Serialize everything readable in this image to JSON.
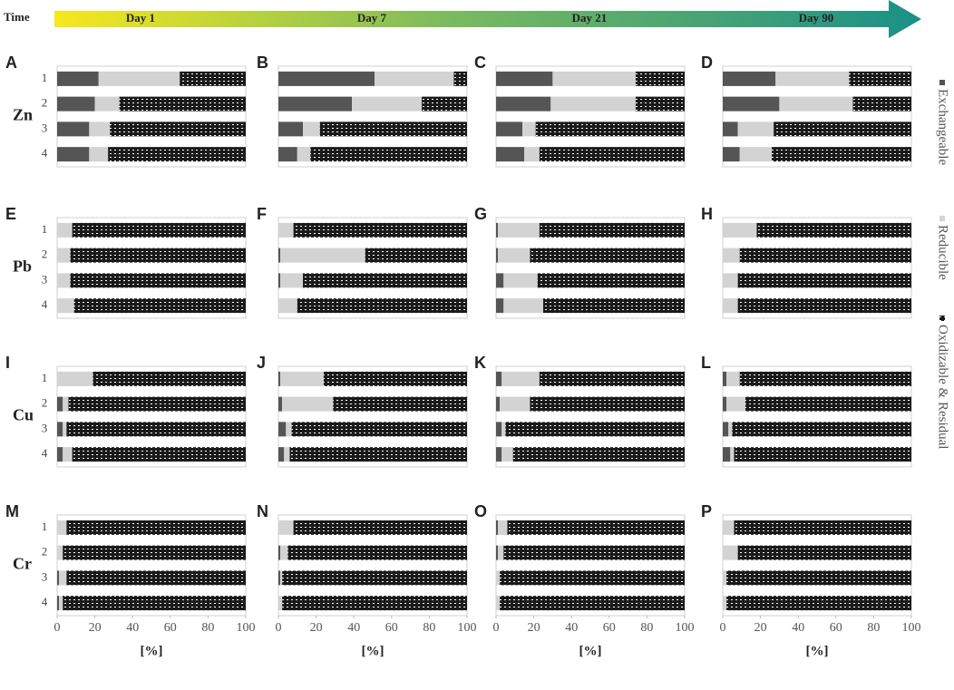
{
  "time_label": "Time",
  "time_points": [
    "Day 1",
    "Day 7",
    "Day 21",
    "Day 90"
  ],
  "metals": [
    "Zn",
    "Pb",
    "Cu",
    "Cr"
  ],
  "chart_data": [
    {
      "type": "bar",
      "orientation": "horizontal",
      "stacked": true,
      "title": "A",
      "categories": [
        "1",
        "2",
        "3",
        "4"
      ],
      "xlim": [
        0,
        100
      ],
      "series": [
        {
          "name": "Exchangeable",
          "color": "#555555",
          "values": [
            22,
            20,
            17,
            17
          ]
        },
        {
          "name": "Reducible",
          "color": "#d3d3d3",
          "values": [
            43,
            13,
            11,
            10
          ]
        },
        {
          "name": "Oxidizable & Residual",
          "color": "#1a1a1a",
          "pattern": true,
          "values": [
            35,
            67,
            72,
            73
          ]
        }
      ]
    },
    {
      "type": "bar",
      "orientation": "horizontal",
      "stacked": true,
      "title": "B",
      "categories": [
        null,
        null,
        null,
        null
      ],
      "xlim": [
        0,
        100
      ],
      "series": [
        {
          "color": "#555555",
          "values": [
            51,
            39,
            13,
            10
          ]
        },
        {
          "color": "#d3d3d3",
          "values": [
            42,
            37,
            9,
            7
          ]
        },
        {
          "color": "#1a1a1a",
          "pattern": true,
          "values": [
            7,
            24,
            78,
            83
          ]
        }
      ]
    },
    {
      "type": "bar",
      "orientation": "horizontal",
      "stacked": true,
      "title": "C",
      "categories": [
        null,
        null,
        null,
        null
      ],
      "xlim": [
        0,
        100
      ],
      "series": [
        {
          "color": "#555555",
          "values": [
            30,
            29,
            14,
            15
          ]
        },
        {
          "color": "#d3d3d3",
          "values": [
            44,
            45,
            7,
            8
          ]
        },
        {
          "color": "#1a1a1a",
          "pattern": true,
          "values": [
            26,
            26,
            79,
            77
          ]
        }
      ]
    },
    {
      "type": "bar",
      "orientation": "horizontal",
      "stacked": true,
      "title": "D",
      "categories": [
        null,
        null,
        null,
        null
      ],
      "xlim": [
        0,
        100
      ],
      "series": [
        {
          "color": "#555555",
          "values": [
            28,
            30,
            8,
            9
          ]
        },
        {
          "color": "#d3d3d3",
          "values": [
            39,
            39,
            19,
            17
          ]
        },
        {
          "color": "#1a1a1a",
          "pattern": true,
          "values": [
            33,
            31,
            73,
            74
          ]
        }
      ]
    },
    {
      "type": "bar",
      "orientation": "horizontal",
      "stacked": true,
      "title": "E",
      "categories": [
        "1",
        "2",
        "3",
        "4"
      ],
      "xlim": [
        0,
        100
      ],
      "series": [
        {
          "color": "#555555",
          "values": [
            0,
            0,
            0,
            0
          ]
        },
        {
          "color": "#d3d3d3",
          "values": [
            8,
            7,
            7,
            9
          ]
        },
        {
          "color": "#1a1a1a",
          "pattern": true,
          "values": [
            92,
            93,
            93,
            91
          ]
        }
      ]
    },
    {
      "type": "bar",
      "orientation": "horizontal",
      "stacked": true,
      "title": "F",
      "categories": [
        null,
        null,
        null,
        null
      ],
      "xlim": [
        0,
        100
      ],
      "series": [
        {
          "color": "#555555",
          "values": [
            0,
            1,
            1,
            0
          ]
        },
        {
          "color": "#d3d3d3",
          "values": [
            8,
            45,
            12,
            10
          ]
        },
        {
          "color": "#1a1a1a",
          "pattern": true,
          "values": [
            92,
            54,
            87,
            90
          ]
        }
      ]
    },
    {
      "type": "bar",
      "orientation": "horizontal",
      "stacked": true,
      "title": "G",
      "categories": [
        null,
        null,
        null,
        null
      ],
      "xlim": [
        0,
        100
      ],
      "series": [
        {
          "color": "#555555",
          "values": [
            1,
            1,
            4,
            4
          ]
        },
        {
          "color": "#d3d3d3",
          "values": [
            22,
            17,
            18,
            21
          ]
        },
        {
          "color": "#1a1a1a",
          "pattern": true,
          "values": [
            77,
            82,
            78,
            75
          ]
        }
      ]
    },
    {
      "type": "bar",
      "orientation": "horizontal",
      "stacked": true,
      "title": "H",
      "categories": [
        null,
        null,
        null,
        null
      ],
      "xlim": [
        0,
        100
      ],
      "series": [
        {
          "color": "#555555",
          "values": [
            0,
            0,
            0,
            0
          ]
        },
        {
          "color": "#d3d3d3",
          "values": [
            18,
            9,
            8,
            8
          ]
        },
        {
          "color": "#1a1a1a",
          "pattern": true,
          "values": [
            82,
            91,
            92,
            92
          ]
        }
      ]
    },
    {
      "type": "bar",
      "orientation": "horizontal",
      "stacked": true,
      "title": "I",
      "categories": [
        "1",
        "2",
        "3",
        "4"
      ],
      "xlim": [
        0,
        100
      ],
      "series": [
        {
          "color": "#555555",
          "values": [
            0,
            3,
            3,
            3
          ]
        },
        {
          "color": "#d3d3d3",
          "values": [
            19,
            3,
            2,
            5
          ]
        },
        {
          "color": "#1a1a1a",
          "pattern": true,
          "values": [
            81,
            94,
            95,
            92
          ]
        }
      ]
    },
    {
      "type": "bar",
      "orientation": "horizontal",
      "stacked": true,
      "title": "J",
      "categories": [
        null,
        null,
        null,
        null
      ],
      "xlim": [
        0,
        100
      ],
      "series": [
        {
          "color": "#555555",
          "values": [
            1,
            2,
            4,
            3
          ]
        },
        {
          "color": "#d3d3d3",
          "values": [
            23,
            27,
            3,
            3
          ]
        },
        {
          "color": "#1a1a1a",
          "pattern": true,
          "values": [
            76,
            71,
            93,
            94
          ]
        }
      ]
    },
    {
      "type": "bar",
      "orientation": "horizontal",
      "stacked": true,
      "title": "K",
      "categories": [
        null,
        null,
        null,
        null
      ],
      "xlim": [
        0,
        100
      ],
      "series": [
        {
          "color": "#555555",
          "values": [
            3,
            2,
            3,
            3
          ]
        },
        {
          "color": "#d3d3d3",
          "values": [
            20,
            16,
            2,
            6
          ]
        },
        {
          "color": "#1a1a1a",
          "pattern": true,
          "values": [
            77,
            82,
            95,
            91
          ]
        }
      ]
    },
    {
      "type": "bar",
      "orientation": "horizontal",
      "stacked": true,
      "title": "L",
      "categories": [
        null,
        null,
        null,
        null
      ],
      "xlim": [
        0,
        100
      ],
      "series": [
        {
          "color": "#555555",
          "values": [
            2,
            2,
            3,
            4
          ]
        },
        {
          "color": "#d3d3d3",
          "values": [
            7,
            10,
            2,
            2
          ]
        },
        {
          "color": "#1a1a1a",
          "pattern": true,
          "values": [
            91,
            88,
            95,
            94
          ]
        }
      ]
    },
    {
      "type": "bar",
      "orientation": "horizontal",
      "stacked": true,
      "title": "M",
      "categories": [
        "1",
        "2",
        "3",
        "4"
      ],
      "xlim": [
        0,
        100
      ],
      "xticks": [
        0,
        20,
        40,
        60,
        80,
        100
      ],
      "xlabel": "[%]",
      "series": [
        {
          "color": "#555555",
          "values": [
            0,
            0,
            1,
            1
          ]
        },
        {
          "color": "#d3d3d3",
          "values": [
            5,
            3,
            4,
            2
          ]
        },
        {
          "color": "#1a1a1a",
          "pattern": true,
          "values": [
            95,
            97,
            95,
            97
          ]
        }
      ]
    },
    {
      "type": "bar",
      "orientation": "horizontal",
      "stacked": true,
      "title": "N",
      "categories": [
        null,
        null,
        null,
        null
      ],
      "xlim": [
        0,
        100
      ],
      "xticks": [
        0,
        20,
        40,
        60,
        80,
        100
      ],
      "xlabel": "[%]",
      "series": [
        {
          "color": "#555555",
          "values": [
            0,
            1,
            1,
            0
          ]
        },
        {
          "color": "#d3d3d3",
          "values": [
            8,
            4,
            1,
            2
          ]
        },
        {
          "color": "#1a1a1a",
          "pattern": true,
          "values": [
            92,
            95,
            98,
            98
          ]
        }
      ]
    },
    {
      "type": "bar",
      "orientation": "horizontal",
      "stacked": true,
      "title": "O",
      "categories": [
        null,
        null,
        null,
        null
      ],
      "xlim": [
        0,
        100
      ],
      "xticks": [
        0,
        20,
        40,
        60,
        80,
        100
      ],
      "xlabel": "[%]",
      "series": [
        {
          "color": "#555555",
          "values": [
            1,
            1,
            0,
            0
          ]
        },
        {
          "color": "#d3d3d3",
          "values": [
            5,
            3,
            2,
            2
          ]
        },
        {
          "color": "#1a1a1a",
          "pattern": true,
          "values": [
            94,
            96,
            98,
            98
          ]
        }
      ]
    },
    {
      "type": "bar",
      "orientation": "horizontal",
      "stacked": true,
      "title": "P",
      "categories": [
        null,
        null,
        null,
        null
      ],
      "xlim": [
        0,
        100
      ],
      "xticks": [
        0,
        20,
        40,
        60,
        80,
        100
      ],
      "xlabel": "[%]",
      "series": [
        {
          "color": "#555555",
          "values": [
            0,
            0,
            0,
            0
          ]
        },
        {
          "color": "#d3d3d3",
          "values": [
            6,
            8,
            2,
            2
          ]
        },
        {
          "color": "#1a1a1a",
          "pattern": true,
          "values": [
            94,
            92,
            98,
            98
          ]
        }
      ]
    }
  ]
}
